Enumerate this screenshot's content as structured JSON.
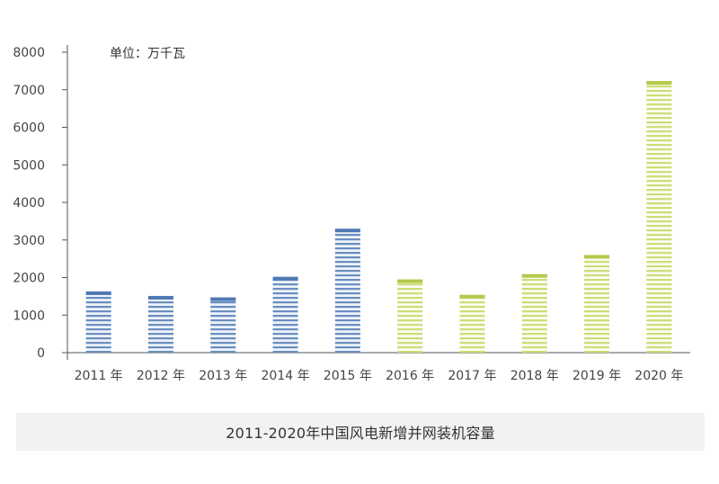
{
  "chart_data": {
    "type": "bar",
    "title": "",
    "unit_label": "单位：万千瓦",
    "xlabel": "",
    "ylabel": "",
    "categories": [
      "2011 年",
      "2012 年",
      "2013 年",
      "2014 年",
      "2015 年",
      "2016 年",
      "2017 年",
      "2018 年",
      "2019 年",
      "2020 年"
    ],
    "values": [
      1630,
      1510,
      1470,
      2020,
      3300,
      1950,
      1540,
      2090,
      2600,
      7230
    ],
    "ylim": [
      0,
      8000
    ],
    "yticks": [
      0,
      1000,
      2000,
      3000,
      4000,
      5000,
      6000,
      7000,
      8000
    ],
    "grid": false,
    "colors": {
      "blue_fill": "#bcd0e8",
      "blue_stripe": "#4f79b3",
      "blue_cap": "#4f79b3",
      "green_fill": "#eef5cc",
      "green_stripe": "#c2d65a",
      "green_cap": "#b2c94a",
      "axis": "#555555"
    },
    "bar_color_group": [
      "blue",
      "blue",
      "blue",
      "blue",
      "blue",
      "green",
      "green",
      "green",
      "green",
      "green"
    ]
  },
  "caption": "2011-2020年中国风电新增并网装机容量"
}
